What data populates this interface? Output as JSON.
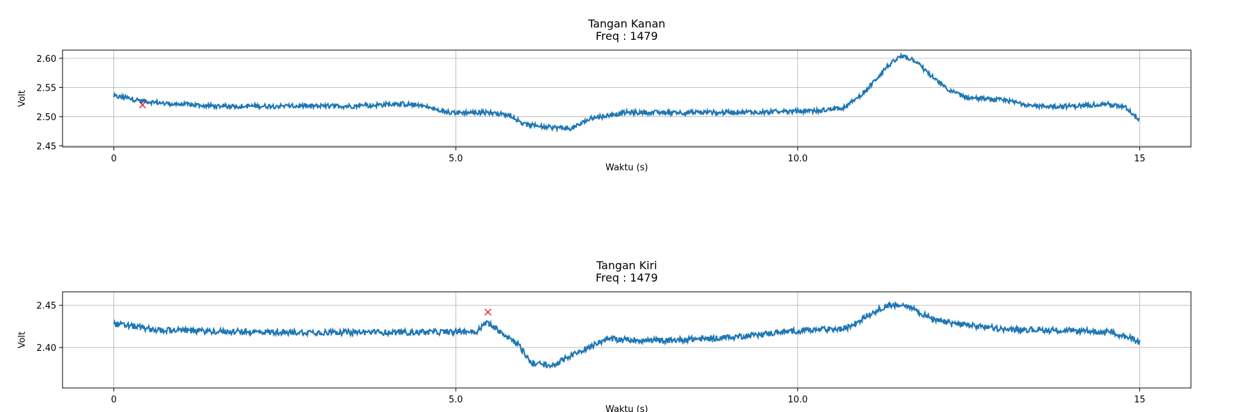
{
  "chart_data": [
    {
      "type": "line",
      "title": "Tangan Kanan",
      "subtitle": "Freq : 1479",
      "xlabel": "Waktu (s)",
      "ylabel": "Volt",
      "xlim": [
        -0.75,
        15.75
      ],
      "ylim": [
        2.448,
        2.614
      ],
      "xticks": [
        0,
        5,
        10,
        15
      ],
      "xtick_labels": [
        "0",
        "5.0",
        "10.0",
        "15"
      ],
      "yticks": [
        2.45,
        2.5,
        2.55,
        2.6
      ],
      "ytick_labels": [
        "2.45",
        "2.50",
        "2.55",
        "2.60"
      ],
      "grid": true,
      "series": [
        {
          "type": "line",
          "color": "#1f77b4",
          "noise": 0.008,
          "x": [
            0,
            0.2,
            0.4,
            0.8,
            1.5,
            2.5,
            3.5,
            4.2,
            4.5,
            4.8,
            5.0,
            5.5,
            5.8,
            6.0,
            6.3,
            6.7,
            7.0,
            7.5,
            8.5,
            9.5,
            10.3,
            10.7,
            11.0,
            11.3,
            11.5,
            11.7,
            11.9,
            12.2,
            12.5,
            13.0,
            13.5,
            14.0,
            14.5,
            14.8,
            15.0
          ],
          "y": [
            2.535,
            2.532,
            2.527,
            2.522,
            2.518,
            2.518,
            2.518,
            2.522,
            2.519,
            2.509,
            2.507,
            2.507,
            2.502,
            2.487,
            2.482,
            2.48,
            2.498,
            2.507,
            2.507,
            2.508,
            2.51,
            2.516,
            2.545,
            2.585,
            2.603,
            2.598,
            2.575,
            2.545,
            2.532,
            2.528,
            2.518,
            2.518,
            2.522,
            2.515,
            2.495
          ]
        },
        {
          "type": "scatter",
          "marker": "x",
          "color": "#d62728",
          "x": [
            0.42
          ],
          "y": [
            2.52
          ]
        }
      ]
    },
    {
      "type": "line",
      "title": "Tangan Kiri",
      "subtitle": "Freq :  1479",
      "xlabel": "Waktu (s)",
      "ylabel": "Volt",
      "xlim": [
        -0.75,
        15.75
      ],
      "ylim": [
        2.352,
        2.466
      ],
      "xticks": [
        0,
        5,
        10,
        15
      ],
      "xtick_labels": [
        "0",
        "5.0",
        "10.0",
        "15"
      ],
      "yticks": [
        2.4,
        2.45
      ],
      "ytick_labels": [
        "2.40",
        "2.45"
      ],
      "grid": true,
      "series": [
        {
          "type": "line",
          "color": "#1f77b4",
          "noise": 0.007,
          "x": [
            0,
            0.3,
            0.6,
            1.5,
            2.5,
            3.5,
            4.5,
            5.3,
            5.45,
            5.6,
            5.9,
            6.1,
            6.4,
            6.8,
            7.2,
            8.0,
            9.0,
            10.0,
            10.7,
            11.0,
            11.3,
            11.6,
            12.0,
            12.5,
            13.0,
            14.0,
            14.6,
            15.0
          ],
          "y": [
            2.428,
            2.425,
            2.421,
            2.419,
            2.418,
            2.418,
            2.418,
            2.419,
            2.43,
            2.422,
            2.405,
            2.382,
            2.378,
            2.395,
            2.41,
            2.408,
            2.412,
            2.42,
            2.422,
            2.437,
            2.45,
            2.45,
            2.432,
            2.426,
            2.422,
            2.42,
            2.418,
            2.407
          ]
        },
        {
          "type": "scatter",
          "marker": "x",
          "color": "#d62728",
          "x": [
            5.47
          ],
          "y": [
            2.442
          ]
        }
      ]
    }
  ]
}
